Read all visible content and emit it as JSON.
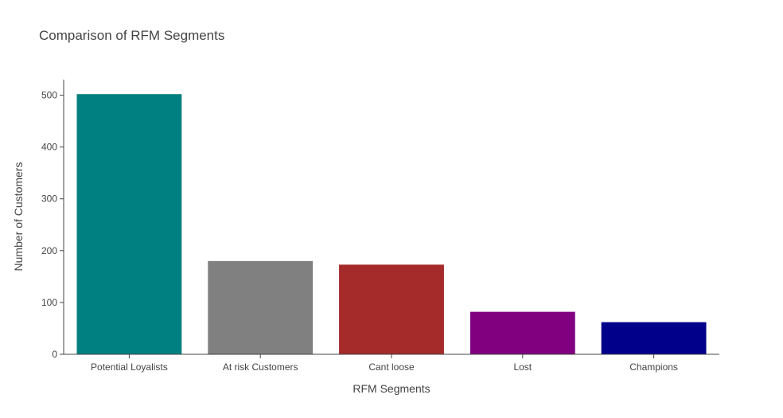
{
  "chart_data": {
    "type": "bar",
    "title": "Comparison of RFM Segments",
    "xlabel": "RFM Segments",
    "ylabel": "Number of Customers",
    "categories": [
      "Potential Loyalists",
      "At risk Customers",
      "Cant loose",
      "Lost",
      "Champions"
    ],
    "values": [
      502,
      180,
      173,
      82,
      62
    ],
    "colors": [
      "#008080",
      "#808080",
      "#a52a2a",
      "#800080",
      "#00008b"
    ],
    "ylim": [
      0,
      530
    ],
    "yticks": [
      0,
      100,
      200,
      300,
      400,
      500
    ],
    "grid": false,
    "legend": "none"
  }
}
